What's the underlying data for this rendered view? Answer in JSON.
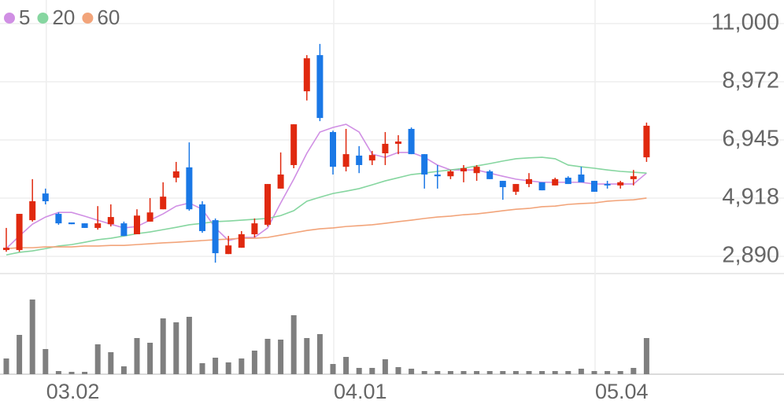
{
  "chart_data": {
    "type": "candlestick",
    "categories": [
      null,
      null,
      null,
      "03.02",
      null,
      null,
      null,
      null,
      null,
      null,
      null,
      null,
      null,
      null,
      null,
      null,
      null,
      null,
      null,
      null,
      null,
      null,
      null,
      null,
      null,
      "04.01",
      null,
      null,
      null,
      null,
      null,
      null,
      null,
      null,
      null,
      null,
      null,
      null,
      null,
      null,
      null,
      null,
      null,
      null,
      null,
      "05.04",
      null,
      null,
      null,
      null
    ],
    "open": [
      3110,
      3110,
      4150,
      5080,
      4370,
      4070,
      4040,
      3880,
      4010,
      4040,
      3660,
      4100,
      4530,
      5630,
      5990,
      4700,
      4150,
      2970,
      3190,
      3660,
      3990,
      5250,
      6070,
      8640,
      9900,
      7220,
      6010,
      6400,
      6230,
      6480,
      6810,
      7330,
      6450,
      5740,
      5680,
      5850,
      5790,
      5850,
      5520,
      5140,
      5410,
      5470,
      5360,
      5630,
      5740,
      5520,
      5410,
      5360,
      5580,
      6340
    ],
    "high": [
      3880,
      4370,
      5580,
      5250,
      4420,
      4070,
      4040,
      4640,
      4700,
      4100,
      4530,
      4920,
      5470,
      6180,
      6860,
      4810,
      4210,
      3600,
      3770,
      4210,
      5410,
      6510,
      7490,
      9900,
      10290,
      7270,
      7330,
      6730,
      6560,
      7220,
      7110,
      7380,
      6450,
      6070,
      5900,
      6070,
      6070,
      5900,
      5520,
      5410,
      5790,
      5470,
      5630,
      5680,
      6010,
      5520,
      5520,
      5520,
      5900,
      7550
    ],
    "low": [
      3050,
      3050,
      4100,
      4700,
      3990,
      4010,
      3880,
      3820,
      3930,
      3600,
      3660,
      4100,
      4530,
      5470,
      4480,
      3710,
      2670,
      2970,
      3190,
      3550,
      3930,
      5250,
      5960,
      8320,
      7600,
      5740,
      5850,
      5790,
      6070,
      6070,
      6450,
      6450,
      5250,
      5250,
      5580,
      5470,
      5520,
      5580,
      4860,
      5030,
      5300,
      5190,
      5360,
      5410,
      5470,
      5140,
      5250,
      5250,
      5360,
      6180
    ],
    "close": [
      3190,
      4370,
      4810,
      4810,
      4040,
      4010,
      3880,
      4040,
      4260,
      3600,
      4310,
      4420,
      4970,
      5850,
      4530,
      3770,
      3000,
      3270,
      3660,
      4040,
      5410,
      5740,
      7490,
      9790,
      7710,
      6010,
      6450,
      6070,
      6420,
      6810,
      6890,
      6450,
      5740,
      5680,
      5850,
      5960,
      6010,
      5580,
      5300,
      5410,
      5580,
      5190,
      5580,
      5410,
      5470,
      5140,
      5360,
      5470,
      5680,
      7440
    ],
    "up_color": "#e0290f",
    "down_color": "#1a78e6",
    "series": [
      {
        "name": "5",
        "color": "#d08fe4",
        "values": [
          3160,
          3600,
          4010,
          4260,
          4420,
          4420,
          4290,
          4150,
          4010,
          3880,
          3930,
          4150,
          4370,
          4640,
          4750,
          4530,
          3880,
          3440,
          3550,
          3550,
          3880,
          4750,
          5580,
          6480,
          7220,
          7380,
          7490,
          7220,
          6450,
          6340,
          6510,
          6510,
          6340,
          6070,
          5900,
          5900,
          5900,
          5790,
          5680,
          5580,
          5520,
          5470,
          5470,
          5470,
          5470,
          5410,
          5410,
          5410,
          5410,
          5790
        ]
      },
      {
        "name": "20",
        "color": "#86d6a0",
        "values": [
          2940,
          3030,
          3080,
          3160,
          3250,
          3300,
          3380,
          3470,
          3520,
          3600,
          3680,
          3740,
          3820,
          3900,
          3990,
          4040,
          4100,
          4120,
          4150,
          4180,
          4210,
          4310,
          4480,
          4810,
          4950,
          5080,
          5160,
          5250,
          5380,
          5520,
          5630,
          5740,
          5790,
          5850,
          5900,
          5960,
          6040,
          6120,
          6210,
          6290,
          6320,
          6340,
          6290,
          6070,
          6010,
          5960,
          5900,
          5850,
          5820,
          5790
        ]
      },
      {
        "name": "60",
        "color": "#f2a47a",
        "values": [
          3160,
          3190,
          3190,
          3220,
          3220,
          3220,
          3250,
          3250,
          3270,
          3270,
          3300,
          3330,
          3360,
          3380,
          3410,
          3440,
          3470,
          3490,
          3520,
          3520,
          3550,
          3630,
          3710,
          3790,
          3850,
          3880,
          3930,
          3960,
          3990,
          4040,
          4100,
          4150,
          4210,
          4260,
          4290,
          4340,
          4370,
          4420,
          4480,
          4530,
          4560,
          4620,
          4640,
          4700,
          4730,
          4750,
          4810,
          4840,
          4860,
          4920
        ]
      }
    ],
    "ylim": [
      2290,
      11820
    ],
    "yticks": [
      {
        "value": 11000,
        "label": "11,000"
      },
      {
        "value": 8972,
        "label": "8,972"
      },
      {
        "value": 6945,
        "label": "6,945"
      },
      {
        "value": 4918,
        "label": "4,918"
      },
      {
        "value": 2890,
        "label": "2,890"
      }
    ],
    "volume": [
      20,
      50,
      95,
      32,
      4,
      3,
      3,
      38,
      28,
      10,
      46,
      40,
      71,
      66,
      73,
      14,
      21,
      15,
      20,
      30,
      45,
      44,
      75,
      46,
      51,
      13,
      22,
      8,
      8,
      19,
      9,
      7,
      4,
      4,
      4,
      4,
      4,
      4,
      4,
      4,
      4,
      4,
      4,
      4,
      7,
      4,
      4,
      4,
      8,
      46
    ],
    "volume_ylim": [
      0,
      120
    ],
    "volume_color": "#7f7f7f",
    "grid": true
  }
}
